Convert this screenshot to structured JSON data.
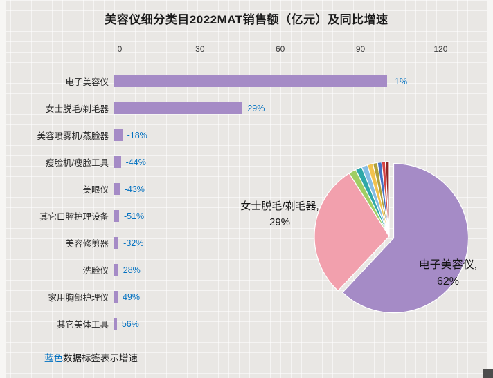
{
  "page": {
    "note": {
      "highlight": "蓝色",
      "rest": "数据标签表示增速"
    }
  },
  "chart_data": [
    {
      "type": "bar",
      "orientation": "horizontal",
      "title": "美容仪细分类目2022MAT销售额（亿元）及同比增速",
      "unit": "亿元",
      "categories": [
        "电子美容仪",
        "女士脱毛/剃毛器",
        "美容喷雾机/蒸脸器",
        "瘦脸机/瘦脸工具",
        "美眼仪",
        "其它口腔护理设备",
        "美容修剪器",
        "洗脸仪",
        "家用胸部护理仪",
        "其它美体工具"
      ],
      "values": [
        102,
        48,
        3,
        2.5,
        2,
        1.8,
        1.6,
        1.5,
        1.3,
        1
      ],
      "growth_labels": [
        "-1%",
        "29%",
        "-18%",
        "-44%",
        "-43%",
        "-51%",
        "-32%",
        "28%",
        "49%",
        "56%"
      ],
      "x_ticks": [
        0,
        30,
        60,
        90,
        120
      ],
      "xlim": [
        0,
        130
      ],
      "grid": false,
      "bar_color": "#a58bc6",
      "label_color": "#0070c0"
    },
    {
      "type": "pie",
      "slices": [
        {
          "label": "电子美容仪",
          "pct": 62,
          "color": "#a58bc6",
          "explode": true
        },
        {
          "label": "女士脱毛/剃毛器",
          "pct": 29,
          "color": "#f2a0ad"
        },
        {
          "label": "美容喷雾机/蒸脸器",
          "pct": 1.6,
          "color": "#9fce63"
        },
        {
          "label": "瘦脸机/瘦脸工具",
          "pct": 1.4,
          "color": "#2fa8a8"
        },
        {
          "label": "美眼仪",
          "pct": 1.3,
          "color": "#86bde4"
        },
        {
          "label": "其它口腔护理设备",
          "pct": 1.2,
          "color": "#f2c24e"
        },
        {
          "label": "美容修剪器",
          "pct": 1.0,
          "color": "#b0a13c"
        },
        {
          "label": "洗脸仪",
          "pct": 0.9,
          "color": "#4472c4"
        },
        {
          "label": "家用胸部护理仪",
          "pct": 0.8,
          "color": "#d64545"
        },
        {
          "label": "其它美体工具",
          "pct": 0.8,
          "color": "#8f2626"
        }
      ],
      "callouts": {
        "main": {
          "line1": "电子美容仪,",
          "line2": "62%"
        },
        "secondary": {
          "line1": "女士脱毛/剃毛器,",
          "line2": "29%"
        }
      }
    }
  ]
}
